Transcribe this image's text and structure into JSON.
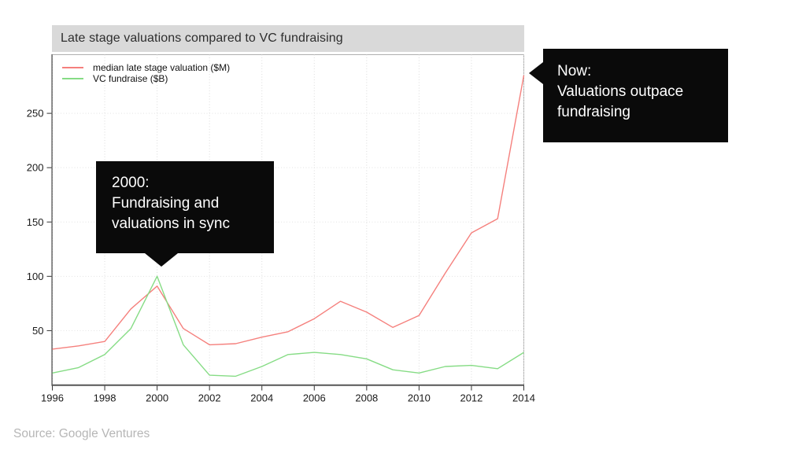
{
  "slide": {
    "title_bar": "Late stage valuations compared to VC fundraising",
    "source": "Source: Google Ventures"
  },
  "legend": {
    "items": [
      {
        "label": "median late stage valuation ($M)",
        "color": "#f5807d"
      },
      {
        "label": "VC fundraise ($B)",
        "color": "#86dc85"
      }
    ]
  },
  "callouts": [
    {
      "id": "callout-2000",
      "lines": [
        "2000:",
        "Fundraising and",
        "valuations in sync"
      ]
    },
    {
      "id": "callout-now",
      "lines": [
        "Now:",
        "Valuations outpace",
        "fundraising"
      ]
    }
  ],
  "chart_data": {
    "type": "line",
    "title": "Late stage valuations compared to VC fundraising",
    "x": [
      1996,
      1997,
      1998,
      1999,
      2000,
      2001,
      2002,
      2003,
      2004,
      2005,
      2006,
      2007,
      2008,
      2009,
      2010,
      2011,
      2012,
      2013,
      2014
    ],
    "series": [
      {
        "name": "median late stage valuation ($M)",
        "color": "#f5807d",
        "values": [
          33,
          36,
          40,
          70,
          91,
          52,
          37,
          38,
          44,
          49,
          61,
          77,
          67,
          53,
          64,
          103,
          140,
          153,
          285
        ]
      },
      {
        "name": "VC fundraise ($B)",
        "color": "#86dc85",
        "values": [
          11,
          16,
          28,
          52,
          100,
          37,
          9,
          8,
          17,
          28,
          30,
          28,
          24,
          14,
          11,
          17,
          18,
          15,
          30
        ]
      }
    ],
    "xticks": [
      1996,
      1998,
      2000,
      2002,
      2004,
      2006,
      2008,
      2010,
      2012,
      2014
    ],
    "yticks": [
      50,
      100,
      150,
      200,
      250
    ],
    "xlim": [
      1996,
      2014
    ],
    "ylim": [
      0,
      304
    ],
    "grid": "dotted",
    "legend_position": "top-left",
    "annotations": [
      {
        "year": 2000,
        "text": "2000: Fundraising and valuations in sync"
      },
      {
        "year": 2014,
        "text": "Now: Valuations outpace fundraising"
      }
    ]
  }
}
